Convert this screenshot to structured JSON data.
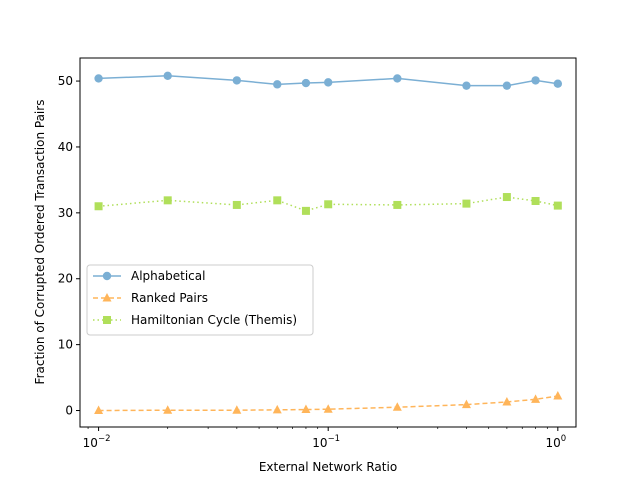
{
  "chart_data": {
    "type": "line",
    "xscale": "log",
    "xlabel": "External Network Ratio",
    "ylabel": "Fraction of Corrupted Ordered Transaction Pairs",
    "xlim": [
      0.0083,
      1.2
    ],
    "ylim": [
      -2.5,
      53.5
    ],
    "yticks": [
      0,
      10,
      20,
      30,
      40,
      50
    ],
    "xticks": [
      {
        "value": 0.01,
        "base": "10",
        "exp": "−2"
      },
      {
        "value": 0.1,
        "base": "10",
        "exp": "−1"
      },
      {
        "value": 1,
        "base": "10",
        "exp": "0"
      }
    ],
    "x": [
      0.01,
      0.02,
      0.04,
      0.06,
      0.08,
      0.1,
      0.2,
      0.4,
      0.6,
      0.8,
      1.0
    ],
    "series": [
      {
        "name": "Alphabetical",
        "color": "#7bafd4",
        "marker": "circle",
        "dash": "solid",
        "values": [
          50.4,
          50.8,
          50.1,
          49.5,
          49.7,
          49.8,
          50.4,
          49.3,
          49.3,
          50.1,
          49.6
        ]
      },
      {
        "name": "Ranked Pairs",
        "color": "#ffb55a",
        "marker": "triangle",
        "dash": "dashed",
        "values": [
          0.0,
          0.05,
          0.05,
          0.1,
          0.15,
          0.2,
          0.5,
          0.9,
          1.3,
          1.7,
          2.2
        ]
      },
      {
        "name": "Hamiltonian Cycle (Themis)",
        "color": "#b0df5a",
        "marker": "square",
        "dash": "dotted",
        "values": [
          31.0,
          31.9,
          31.2,
          31.9,
          30.3,
          31.3,
          31.2,
          31.4,
          32.4,
          31.8,
          31.1
        ]
      }
    ],
    "legend_position": "center-left"
  }
}
